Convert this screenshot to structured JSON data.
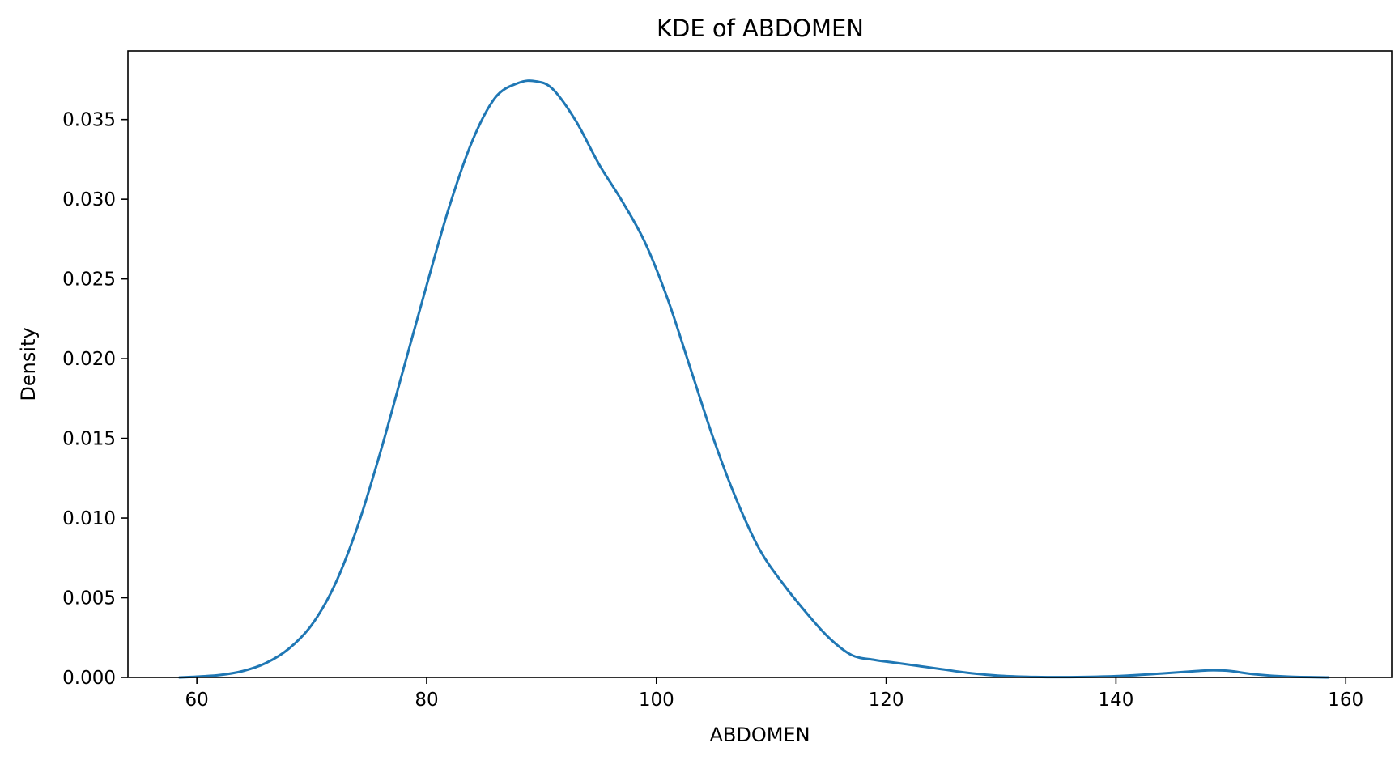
{
  "chart_data": {
    "type": "line",
    "title": "KDE of ABDOMEN",
    "xlabel": "ABDOMEN",
    "ylabel": "Density",
    "xlim": [
      54,
      164
    ],
    "ylim": [
      0,
      0.0393
    ],
    "x_ticks": [
      60,
      80,
      100,
      120,
      140,
      160
    ],
    "y_ticks": [
      0.0,
      0.005,
      0.01,
      0.015,
      0.02,
      0.025,
      0.03,
      0.035
    ],
    "x_tick_labels": [
      "60",
      "80",
      "100",
      "120",
      "140",
      "160"
    ],
    "y_tick_labels": [
      "0.000",
      "0.005",
      "0.010",
      "0.015",
      "0.020",
      "0.025",
      "0.030",
      "0.035"
    ],
    "grid": false,
    "legend": "none",
    "series": [
      {
        "color": "#1f77b4",
        "x": [
          58.5,
          60,
          62,
          64,
          66,
          68,
          70,
          72,
          74,
          76,
          78,
          80,
          82,
          84,
          86,
          88,
          89.5,
          91,
          93,
          95,
          97,
          99,
          101,
          103,
          105,
          107,
          109,
          111,
          113,
          115,
          117,
          119,
          121,
          123,
          125,
          127,
          130,
          133,
          136,
          140,
          144,
          147,
          148.5,
          150,
          152,
          155,
          158.5
        ],
        "y": [
          0.0,
          5e-05,
          0.00015,
          0.0004,
          0.0009,
          0.0018,
          0.0033,
          0.0058,
          0.0095,
          0.0142,
          0.0194,
          0.0246,
          0.0296,
          0.0337,
          0.0364,
          0.0373,
          0.0374,
          0.0369,
          0.0349,
          0.0322,
          0.0299,
          0.0273,
          0.0237,
          0.0193,
          0.0149,
          0.0111,
          0.008,
          0.0059,
          0.0041,
          0.0025,
          0.0014,
          0.0011,
          0.0009,
          0.0007,
          0.0005,
          0.0003,
          0.0001,
          3e-05,
          2e-05,
          8e-05,
          0.00025,
          0.0004,
          0.00045,
          0.0004,
          0.0002,
          5e-05,
          0.0
        ]
      }
    ]
  }
}
